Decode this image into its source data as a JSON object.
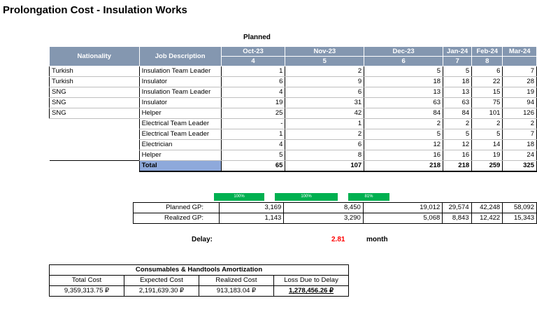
{
  "title": "Prolongation Cost - Insulation Works",
  "planned_label": "Planned",
  "headers": {
    "nationality": "Nationality",
    "job": "Job Description"
  },
  "months": [
    {
      "name": "Oct-23",
      "num": "4"
    },
    {
      "name": "Nov-23",
      "num": "5"
    },
    {
      "name": "Dec-23",
      "num": "6"
    },
    {
      "name": "Jan-24",
      "num": "7"
    },
    {
      "name": "Feb-24",
      "num": "8"
    },
    {
      "name": "Mar-24",
      "num": ""
    }
  ],
  "rows": [
    {
      "nationality": "Turkish",
      "job": "Insulation Team Leader",
      "values": [
        "1",
        "2",
        "5",
        "5",
        "6",
        "7"
      ]
    },
    {
      "nationality": "Turkish",
      "job": "Insulator",
      "values": [
        "6",
        "9",
        "18",
        "18",
        "22",
        "28"
      ]
    },
    {
      "nationality": "SNG",
      "job": "Insulation Team Leader",
      "values": [
        "4",
        "6",
        "13",
        "13",
        "15",
        "19"
      ]
    },
    {
      "nationality": "SNG",
      "job": "Insulator",
      "values": [
        "19",
        "31",
        "63",
        "63",
        "75",
        "94"
      ]
    },
    {
      "nationality": "SNG",
      "job": "Helper",
      "values": [
        "25",
        "42",
        "84",
        "84",
        "101",
        "126"
      ]
    },
    {
      "nationality": "",
      "job": "Electrical Team Leader",
      "values": [
        "-",
        "1",
        "2",
        "2",
        "2",
        "2"
      ]
    },
    {
      "nationality": "",
      "job": "Electrical Team Leader",
      "values": [
        "1",
        "2",
        "5",
        "5",
        "5",
        "7"
      ]
    },
    {
      "nationality": "",
      "job": "Electrician",
      "values": [
        "4",
        "6",
        "12",
        "12",
        "14",
        "18"
      ]
    },
    {
      "nationality": "",
      "job": "Helper",
      "values": [
        "5",
        "8",
        "16",
        "16",
        "19",
        "24"
      ]
    }
  ],
  "total": {
    "label": "Total",
    "values": [
      "65",
      "107",
      "218",
      "218",
      "259",
      "325"
    ]
  },
  "progress": [
    {
      "label": "100%",
      "value": 1.0
    },
    {
      "label": "100%",
      "value": 1.0
    },
    {
      "label": "81%",
      "value": 0.81
    }
  ],
  "gp": {
    "planned_label": "Planned GP:",
    "realized_label": "Realized GP:",
    "planned": [
      "3,169",
      "8,450",
      "19,012",
      "29,574",
      "42,248",
      "58,092"
    ],
    "realized": [
      "1,143",
      "3,290",
      "5,068",
      "8,843",
      "12,422",
      "15,343"
    ]
  },
  "delay": {
    "label": "Delay:",
    "value": "2.81",
    "unit": "month"
  },
  "consumables": {
    "title": "Consumables & Handtools Amortization",
    "headers": [
      "Total Cost",
      "Expected Cost",
      "Realized Cost",
      "Loss Due to Delay"
    ],
    "values": [
      "9,359,313.75 ₽",
      "2,191,639.30 ₽",
      "913,183.04 ₽",
      "1,278,456.26 ₽"
    ]
  }
}
